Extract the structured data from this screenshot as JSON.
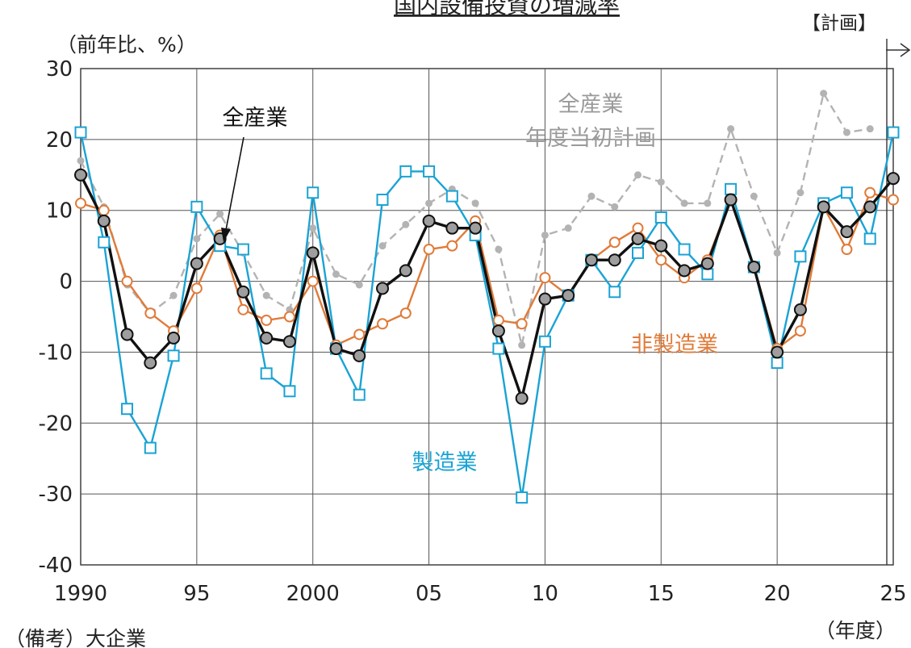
{
  "chart_data": {
    "type": "line",
    "title": "国内設備投資の増減率",
    "ylabel": "（前年比、%）",
    "xlabel": "（年度）",
    "note": "（備考）大企業",
    "plan_label": "【計画】",
    "ylim": [
      -40,
      30
    ],
    "xlim": [
      1990,
      2025
    ],
    "yticks": [
      30,
      20,
      10,
      0,
      -10,
      -20,
      -30,
      -40
    ],
    "xticks": [
      {
        "x": 1990,
        "label": "1990"
      },
      {
        "x": 1995,
        "label": "95"
      },
      {
        "x": 2000,
        "label": "2000"
      },
      {
        "x": 2005,
        "label": "05"
      },
      {
        "x": 2010,
        "label": "10"
      },
      {
        "x": 2015,
        "label": "15"
      },
      {
        "x": 2020,
        "label": "20"
      },
      {
        "x": 2025,
        "label": "25"
      }
    ],
    "grid": true,
    "series": [
      {
        "name": "全産業年度当初計画",
        "label_lines": [
          "全産業",
          "年度当初計画"
        ],
        "color": "#b3b3b3",
        "style": "dashed",
        "marker": "dot",
        "x": [
          1990,
          1991,
          1992,
          1993,
          1994,
          1995,
          1996,
          1997,
          1998,
          1999,
          2000,
          2001,
          2002,
          2003,
          2004,
          2005,
          2006,
          2007,
          2008,
          2009,
          2010,
          2011,
          2012,
          2013,
          2014,
          2015,
          2016,
          2017,
          2018,
          2019,
          2020,
          2021,
          2022,
          2023,
          2024
        ],
        "values": [
          17,
          10.5,
          -0.5,
          -4.5,
          -2,
          6,
          9.5,
          4,
          -2,
          -4,
          7.5,
          1,
          -0.5,
          5,
          8,
          11,
          13,
          11,
          4.5,
          -9,
          6.5,
          7.5,
          12,
          10.5,
          15,
          14,
          11,
          11,
          21.5,
          12,
          4,
          12.5,
          26.5,
          21,
          21.5
        ]
      },
      {
        "name": "非製造業",
        "color": "#e07b39",
        "style": "solid",
        "marker": "circle",
        "x": [
          1990,
          1991,
          1992,
          1993,
          1994,
          1995,
          1996,
          1997,
          1998,
          1999,
          2000,
          2001,
          2002,
          2003,
          2004,
          2005,
          2006,
          2007,
          2008,
          2009,
          2010,
          2011,
          2012,
          2013,
          2014,
          2015,
          2016,
          2017,
          2018,
          2019,
          2020,
          2021,
          2022,
          2023,
          2024,
          2025
        ],
        "values": [
          11,
          10,
          0,
          -4.5,
          -7,
          -1,
          6.5,
          -4,
          -5.5,
          -5,
          0,
          -9,
          -7.5,
          -6,
          -4.5,
          4.5,
          5,
          8.5,
          -5.5,
          -6,
          0.5,
          -2,
          3,
          5.5,
          7.5,
          3,
          0.5,
          3,
          11.5,
          2,
          -9.5,
          -7,
          10.5,
          4.5,
          12.5,
          11.5
        ]
      },
      {
        "name": "製造業",
        "color": "#1aa3d4",
        "style": "solid",
        "marker": "square",
        "x": [
          1990,
          1991,
          1992,
          1993,
          1994,
          1995,
          1996,
          1997,
          1998,
          1999,
          2000,
          2001,
          2002,
          2003,
          2004,
          2005,
          2006,
          2007,
          2008,
          2009,
          2010,
          2011,
          2012,
          2013,
          2014,
          2015,
          2016,
          2017,
          2018,
          2019,
          2020,
          2021,
          2022,
          2023,
          2024,
          2025
        ],
        "values": [
          21,
          5.5,
          -18,
          -23.5,
          -10.5,
          10.5,
          5,
          4.5,
          -13,
          -15.5,
          12.5,
          -9.5,
          -16,
          11.5,
          15.5,
          15.5,
          12,
          6.5,
          -9.5,
          -30.5,
          -8.5,
          -2,
          3,
          -1.5,
          4,
          9,
          4.5,
          1,
          13,
          2,
          -11.5,
          3.5,
          11,
          12.5,
          6,
          21
        ]
      },
      {
        "name": "全産業",
        "color": "#111111",
        "style": "solid",
        "marker": "gray-circle",
        "x": [
          1990,
          1991,
          1992,
          1993,
          1994,
          1995,
          1996,
          1997,
          1998,
          1999,
          2000,
          2001,
          2002,
          2003,
          2004,
          2005,
          2006,
          2007,
          2008,
          2009,
          2010,
          2011,
          2012,
          2013,
          2014,
          2015,
          2016,
          2017,
          2018,
          2019,
          2020,
          2021,
          2022,
          2023,
          2024,
          2025
        ],
        "values": [
          15,
          8.5,
          -7.5,
          -11.5,
          -8,
          2.5,
          6,
          -1.5,
          -8,
          -8.5,
          4,
          -9.5,
          -10.5,
          -1,
          1.5,
          8.5,
          7.5,
          7.5,
          -7,
          -16.5,
          -2.5,
          -2,
          3,
          3,
          6,
          5,
          1.5,
          2.5,
          11.5,
          2,
          -10,
          -4,
          10.5,
          7,
          10.5,
          14.5
        ]
      }
    ]
  }
}
